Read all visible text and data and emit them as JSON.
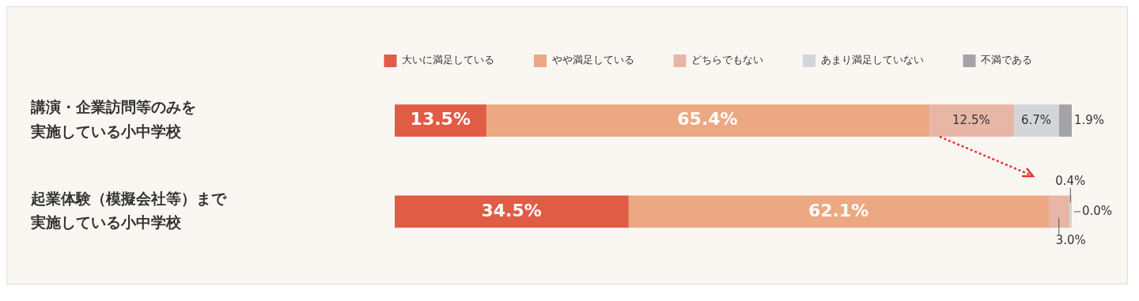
{
  "chart_data": {
    "type": "bar",
    "orientation": "horizontal",
    "stacked": true,
    "legend": "top right",
    "categories": [
      "講演・企業訪問等のみを実施している小中学校",
      "起業体験（模擬会社等）まで実施している小中学校"
    ],
    "series": [
      {
        "name": "大いに満足している",
        "color": "#e05c45",
        "values": [
          13.5,
          34.5
        ],
        "value_labels": [
          "13.5%",
          "34.5%"
        ]
      },
      {
        "name": "やや満足している",
        "color": "#eca882",
        "values": [
          65.4,
          62.1
        ],
        "value_labels": [
          "65.4%",
          "62.1%"
        ]
      },
      {
        "name": "どちらでもない",
        "color": "#e8b6a6",
        "values": [
          12.5,
          3.0
        ],
        "value_labels": [
          "12.5%",
          "3.0%"
        ]
      },
      {
        "name": "あまり満足していない",
        "color": "#d4d5d8",
        "values": [
          6.7,
          0.4
        ],
        "value_labels": [
          "6.7%",
          "0.4%"
        ]
      },
      {
        "name": "不満である",
        "color": "#a4a4a7",
        "values": [
          1.9,
          0.0
        ],
        "value_labels": [
          "1.9%",
          "0.0%"
        ]
      }
    ]
  }
}
